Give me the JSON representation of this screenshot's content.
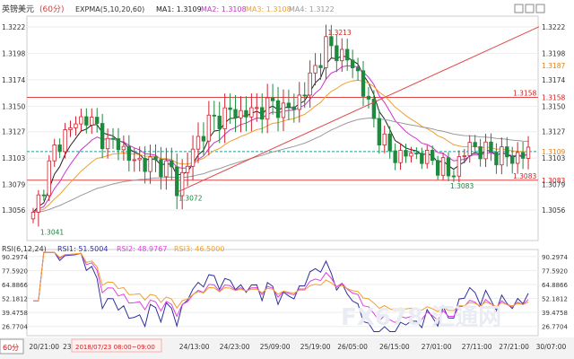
{
  "header": {
    "symbol": "英镑美元",
    "period": "(60分)",
    "indicator": "EXPMA(5,10,20,60)",
    "ma1": "MA1: 1.3109",
    "ma2": "MA2: 1.3108",
    "ma3": "MA3: 1.3108",
    "ma4": "MA4: 1.3122"
  },
  "rsi_header": {
    "name": "RSI(6,12,24)",
    "rsi1": "RSI1: 51.5004",
    "rsi2": "RSI2: 48.9767",
    "rsi3": "RSI3: 46.5000"
  },
  "colors": {
    "candle_up": "#d0202e",
    "candle_down": "#1e8a3e",
    "ma1": "#222222",
    "ma2": "#cc33cc",
    "ma3": "#f0a030",
    "ma4": "#9a9a9a",
    "rsi1": "#3030a0",
    "rsi2": "#e040e0",
    "rsi3": "#f0a030",
    "level_line": "#e04848",
    "trend_line": "#e04848",
    "current_line": "#10a0a0",
    "axis_label": "#333333",
    "marker_label": "#d02020"
  },
  "footer_tab": "60分",
  "highlight_label": "2018/07/23 08:00~09:00",
  "watermark": "FX678 汇通网",
  "chart_data": {
    "type": "candlestick",
    "ylim": [
      1.303,
      1.323
    ],
    "y_ticks": [
      "1.3222",
      "1.3198",
      "1.3174",
      "1.3150",
      "1.3127",
      "1.3103",
      "1.3079",
      "1.3056"
    ],
    "x_labels": [
      "20/21:00",
      "23",
      "24/13:00",
      "24/23:00",
      "25/09:00",
      "25/19:00",
      "26/05:00",
      "26/15:00",
      "27/01:00",
      "27/11:00",
      "27/21:00",
      "30/07:00"
    ],
    "levels": [
      {
        "value": 1.3158,
        "label": "1.3158"
      },
      {
        "value": 1.3083,
        "label": "1.3083"
      }
    ],
    "current_value": 1.3109,
    "current_label": "1.3109",
    "side_label": {
      "value": 1.3187,
      "label": "1.3187"
    },
    "annotations": [
      {
        "text": "1.3213",
        "index": 55,
        "value": 1.3213,
        "type": "high"
      },
      {
        "text": "1.3072",
        "index": 27,
        "value": 1.3072,
        "type": "low"
      },
      {
        "text": "1.3041",
        "index": 1,
        "value": 1.3041,
        "type": "low"
      },
      {
        "text": "1.3083",
        "index": 78,
        "value": 1.3083,
        "type": "low"
      }
    ],
    "trend_line": {
      "from": {
        "index": 27,
        "value": 1.3072
      },
      "to": {
        "index": 95,
        "value": 1.3222
      }
    },
    "candles": [],
    "rsi": {
      "ylim": [
        20,
        95
      ],
      "y_ticks": [
        "90.2974",
        "77.5920",
        "64.8866",
        "52.1812",
        "39.4758",
        "26.7704"
      ],
      "series": [
        {
          "name": "RSI1",
          "values": []
        },
        {
          "name": "RSI2",
          "values": []
        },
        {
          "name": "RSI3",
          "values": []
        }
      ]
    },
    "close_anchors": [
      [
        0,
        1.305
      ],
      [
        2,
        1.308
      ],
      [
        4,
        1.311
      ],
      [
        6,
        1.3125
      ],
      [
        8,
        1.3135
      ],
      [
        10,
        1.314
      ],
      [
        12,
        1.313
      ],
      [
        14,
        1.3115
      ],
      [
        16,
        1.3118
      ],
      [
        18,
        1.3102
      ],
      [
        20,
        1.31
      ],
      [
        22,
        1.3098
      ],
      [
        24,
        1.3097
      ],
      [
        26,
        1.3092
      ],
      [
        27,
        1.3075
      ],
      [
        29,
        1.3098
      ],
      [
        31,
        1.312
      ],
      [
        33,
        1.3135
      ],
      [
        35,
        1.314
      ],
      [
        37,
        1.3145
      ],
      [
        39,
        1.3143
      ],
      [
        41,
        1.3145
      ],
      [
        43,
        1.3148
      ],
      [
        45,
        1.3152
      ],
      [
        47,
        1.3147
      ],
      [
        49,
        1.315
      ],
      [
        51,
        1.3165
      ],
      [
        53,
        1.3185
      ],
      [
        55,
        1.3205
      ],
      [
        57,
        1.32
      ],
      [
        59,
        1.3192
      ],
      [
        61,
        1.318
      ],
      [
        63,
        1.315
      ],
      [
        65,
        1.3125
      ],
      [
        67,
        1.3108
      ],
      [
        69,
        1.3105
      ],
      [
        71,
        1.3107
      ],
      [
        73,
        1.3105
      ],
      [
        75,
        1.31
      ],
      [
        77,
        1.3095
      ],
      [
        78,
        1.3086
      ],
      [
        80,
        1.31
      ],
      [
        82,
        1.3115
      ],
      [
        84,
        1.311
      ],
      [
        86,
        1.3108
      ],
      [
        88,
        1.3105
      ],
      [
        90,
        1.3103
      ],
      [
        92,
        1.3106
      ],
      [
        93,
        1.3109
      ]
    ]
  }
}
